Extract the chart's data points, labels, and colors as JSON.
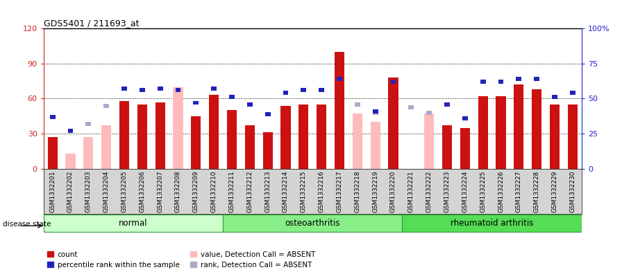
{
  "title": "GDS5401 / 211693_at",
  "samples": [
    "GSM1332201",
    "GSM1332202",
    "GSM1332203",
    "GSM1332204",
    "GSM1332205",
    "GSM1332206",
    "GSM1332207",
    "GSM1332208",
    "GSM1332209",
    "GSM1332210",
    "GSM1332211",
    "GSM1332212",
    "GSM1332213",
    "GSM1332214",
    "GSM1332215",
    "GSM1332216",
    "GSM1332217",
    "GSM1332218",
    "GSM1332219",
    "GSM1332220",
    "GSM1332221",
    "GSM1332222",
    "GSM1332223",
    "GSM1332224",
    "GSM1332225",
    "GSM1332226",
    "GSM1332227",
    "GSM1332228",
    "GSM1332229",
    "GSM1332230"
  ],
  "count_values": [
    27,
    0,
    0,
    0,
    58,
    55,
    57,
    0,
    45,
    63,
    50,
    37,
    31,
    54,
    55,
    55,
    100,
    0,
    0,
    78,
    0,
    0,
    37,
    35,
    62,
    62,
    72,
    68,
    55,
    55
  ],
  "absent_value_bars": [
    0,
    13,
    27,
    37,
    0,
    0,
    0,
    70,
    0,
    0,
    0,
    0,
    0,
    0,
    0,
    0,
    0,
    47,
    40,
    0,
    0,
    47,
    0,
    0,
    0,
    0,
    0,
    0,
    0,
    0
  ],
  "percentile_rank": [
    37,
    27,
    0,
    0,
    57,
    56,
    57,
    56,
    47,
    57,
    51,
    46,
    39,
    54,
    56,
    56,
    64,
    0,
    41,
    62,
    0,
    0,
    46,
    36,
    62,
    62,
    64,
    64,
    51,
    54
  ],
  "absent_rank_bars": [
    0,
    0,
    32,
    45,
    0,
    0,
    0,
    0,
    0,
    0,
    0,
    0,
    0,
    0,
    0,
    0,
    0,
    46,
    40,
    0,
    44,
    40,
    0,
    0,
    0,
    0,
    0,
    0,
    0,
    0
  ],
  "groups": [
    {
      "label": "normal",
      "start": 0,
      "end": 10
    },
    {
      "label": "osteoarthritis",
      "start": 10,
      "end": 20
    },
    {
      "label": "rheumatoid arthritis",
      "start": 20,
      "end": 30
    }
  ],
  "group_colors": [
    "#ccffcc",
    "#88ee88",
    "#55dd55"
  ],
  "ylim_left": [
    0,
    120
  ],
  "yticks_left": [
    0,
    30,
    60,
    90,
    120
  ],
  "ytick_labels_right": [
    "0",
    "25",
    "50",
    "75",
    "100%"
  ],
  "bar_color_count": "#cc1111",
  "bar_color_absent_value": "#ffbbbb",
  "bar_color_percentile": "#2222bb",
  "bar_color_absent_rank": "#aaaacc",
  "disease_state_label": "disease state",
  "legend_items": [
    {
      "label": "count",
      "color": "#cc1111",
      "marker": "s"
    },
    {
      "label": "percentile rank within the sample",
      "color": "#2222bb",
      "marker": "s"
    },
    {
      "label": "value, Detection Call = ABSENT",
      "color": "#ffbbbb",
      "marker": "s"
    },
    {
      "label": "rank, Detection Call = ABSENT",
      "color": "#aaaacc",
      "marker": "s"
    }
  ]
}
